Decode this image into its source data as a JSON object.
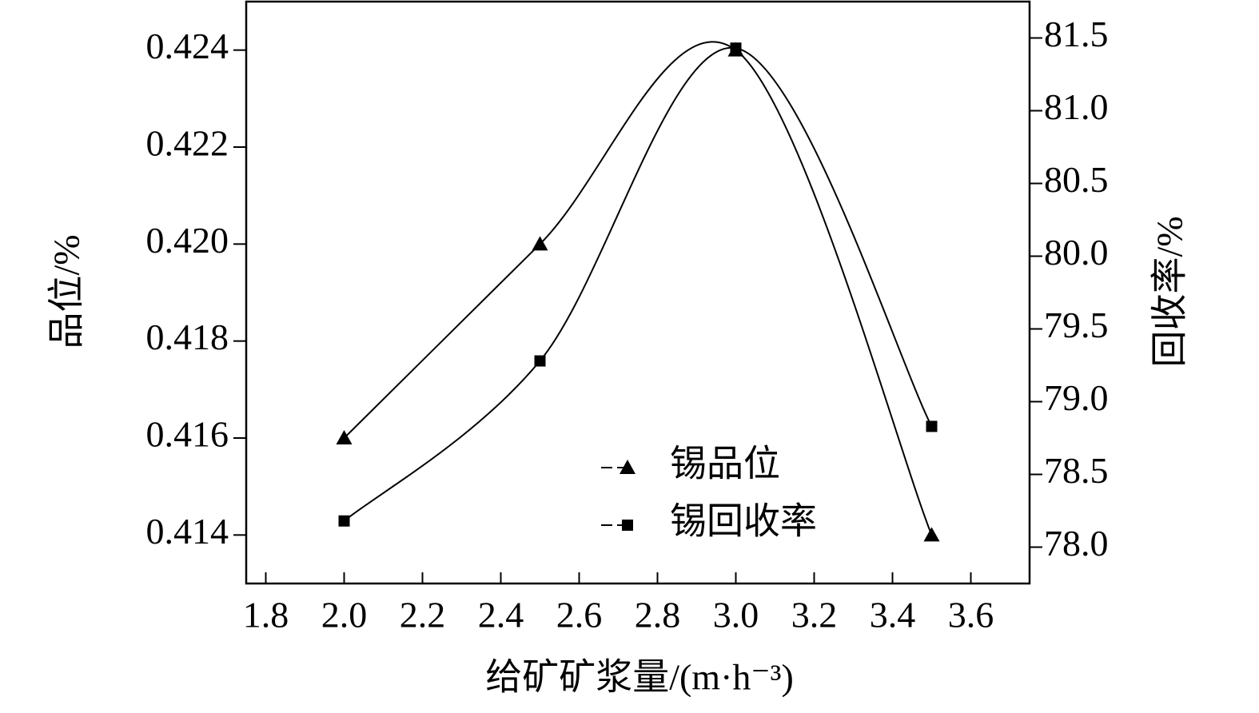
{
  "chart_data": {
    "type": "line",
    "xlabel": "给矿矿浆量/(m·h⁻³)",
    "ylabel": "品位/%",
    "y2label": "回收率/%",
    "x": [
      2.0,
      2.5,
      3.0,
      3.5
    ],
    "series": [
      {
        "name": "锡品位",
        "color": "#000000",
        "marker": "triangle",
        "values": [
          0.416,
          0.42,
          0.424,
          0.414
        ]
      },
      {
        "name": "锡回收率",
        "color": "#000000",
        "marker": "square",
        "axis": "y2",
        "values": [
          78.18,
          79.28,
          81.43,
          78.83
        ]
      }
    ],
    "xlim": [
      1.75,
      3.75
    ],
    "xticks": [
      1.8,
      {
        "value": 2.0,
        "label": "2.0"
      },
      2.2,
      2.4,
      2.6,
      2.8,
      {
        "value": 3.0,
        "label": "3.0"
      },
      3.2,
      3.4,
      3.6
    ],
    "ylim": [
      0.413,
      0.425
    ],
    "yticks": [
      0.414,
      0.416,
      0.418,
      {
        "value": 0.42,
        "label": "0.420"
      },
      0.422,
      0.424
    ],
    "y2lim": [
      77.75,
      81.75
    ],
    "y2ticks": [
      {
        "value": 78,
        "label": "78.0"
      },
      78.5,
      {
        "value": 79,
        "label": "79.0"
      },
      79.5,
      {
        "value": 80,
        "label": "80.0"
      },
      80.5,
      {
        "value": 81,
        "label": "81.0"
      },
      81.5
    ],
    "grid": false,
    "legend": "lower center"
  }
}
